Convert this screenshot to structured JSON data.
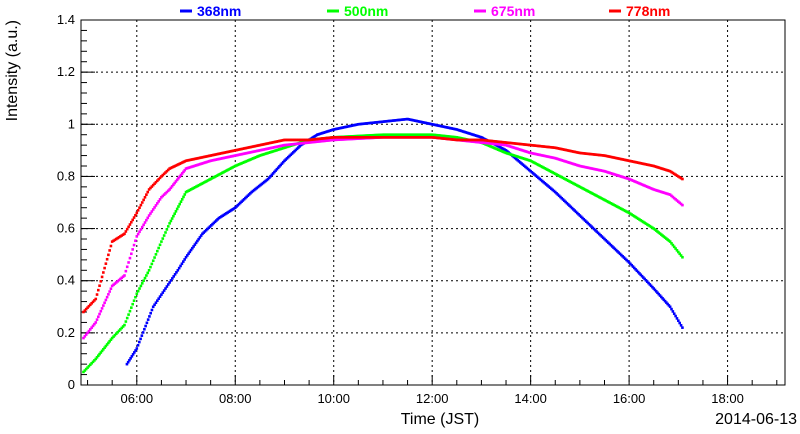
{
  "chart_data": {
    "type": "scatter",
    "title": "",
    "xlabel": "Time (JST)",
    "ylabel": "Intensity (a.u.)",
    "date_label": "2014-06-13",
    "xlim": [
      "04:52",
      "19:10"
    ],
    "ylim": [
      0,
      1.4
    ],
    "x_ticks": [
      "06:00",
      "08:00",
      "10:00",
      "12:00",
      "14:00",
      "16:00",
      "18:00"
    ],
    "y_ticks": [
      "0",
      "0.2",
      "0.4",
      "0.6",
      "0.8",
      "1",
      "1.2",
      "1.4"
    ],
    "grid": true,
    "legend_position": "top",
    "series": [
      {
        "name": "368nm",
        "color": "#0000ff",
        "points": [
          [
            "05:48",
            0.08
          ],
          [
            "06:00",
            0.14
          ],
          [
            "06:20",
            0.3
          ],
          [
            "06:35",
            0.37
          ],
          [
            "06:50",
            0.44
          ],
          [
            "07:00",
            0.49
          ],
          [
            "07:20",
            0.58
          ],
          [
            "07:40",
            0.64
          ],
          [
            "08:00",
            0.68
          ],
          [
            "08:20",
            0.74
          ],
          [
            "08:40",
            0.79
          ],
          [
            "09:00",
            0.86
          ],
          [
            "09:20",
            0.92
          ],
          [
            "09:40",
            0.96
          ],
          [
            "10:00",
            0.98
          ],
          [
            "10:30",
            1.0
          ],
          [
            "11:00",
            1.01
          ],
          [
            "11:30",
            1.02
          ],
          [
            "12:00",
            1.0
          ],
          [
            "12:30",
            0.98
          ],
          [
            "13:00",
            0.95
          ],
          [
            "13:30",
            0.9
          ],
          [
            "14:00",
            0.82
          ],
          [
            "14:30",
            0.74
          ],
          [
            "15:00",
            0.65
          ],
          [
            "15:30",
            0.56
          ],
          [
            "16:00",
            0.47
          ],
          [
            "16:30",
            0.37
          ],
          [
            "16:50",
            0.3
          ],
          [
            "17:05",
            0.22
          ]
        ]
      },
      {
        "name": "500nm",
        "color": "#00ff00",
        "points": [
          [
            "04:55",
            0.05
          ],
          [
            "05:10",
            0.1
          ],
          [
            "05:30",
            0.18
          ],
          [
            "05:45",
            0.23
          ],
          [
            "06:00",
            0.35
          ],
          [
            "06:15",
            0.44
          ],
          [
            "06:30",
            0.55
          ],
          [
            "06:40",
            0.62
          ],
          [
            "07:00",
            0.74
          ],
          [
            "07:30",
            0.79
          ],
          [
            "08:00",
            0.84
          ],
          [
            "08:30",
            0.88
          ],
          [
            "09:00",
            0.91
          ],
          [
            "09:30",
            0.94
          ],
          [
            "10:00",
            0.95
          ],
          [
            "11:00",
            0.96
          ],
          [
            "12:00",
            0.96
          ],
          [
            "12:30",
            0.95
          ],
          [
            "13:00",
            0.93
          ],
          [
            "13:30",
            0.89
          ],
          [
            "14:00",
            0.86
          ],
          [
            "14:30",
            0.81
          ],
          [
            "15:00",
            0.76
          ],
          [
            "15:30",
            0.71
          ],
          [
            "16:00",
            0.66
          ],
          [
            "16:30",
            0.6
          ],
          [
            "16:50",
            0.55
          ],
          [
            "17:05",
            0.49
          ]
        ]
      },
      {
        "name": "675nm",
        "color": "#ff00ff",
        "points": [
          [
            "04:55",
            0.18
          ],
          [
            "05:10",
            0.24
          ],
          [
            "05:30",
            0.38
          ],
          [
            "05:45",
            0.42
          ],
          [
            "06:00",
            0.57
          ],
          [
            "06:15",
            0.65
          ],
          [
            "06:30",
            0.72
          ],
          [
            "06:40",
            0.75
          ],
          [
            "07:00",
            0.83
          ],
          [
            "07:30",
            0.86
          ],
          [
            "08:00",
            0.88
          ],
          [
            "08:30",
            0.9
          ],
          [
            "09:00",
            0.92
          ],
          [
            "09:30",
            0.93
          ],
          [
            "10:00",
            0.94
          ],
          [
            "11:00",
            0.95
          ],
          [
            "12:00",
            0.95
          ],
          [
            "12:30",
            0.94
          ],
          [
            "13:00",
            0.93
          ],
          [
            "13:30",
            0.92
          ],
          [
            "14:00",
            0.89
          ],
          [
            "14:30",
            0.87
          ],
          [
            "15:00",
            0.84
          ],
          [
            "15:30",
            0.82
          ],
          [
            "16:00",
            0.79
          ],
          [
            "16:30",
            0.75
          ],
          [
            "16:50",
            0.73
          ],
          [
            "17:05",
            0.69
          ]
        ]
      },
      {
        "name": "778nm",
        "color": "#ff0000",
        "points": [
          [
            "04:55",
            0.28
          ],
          [
            "05:10",
            0.33
          ],
          [
            "05:30",
            0.55
          ],
          [
            "05:45",
            0.58
          ],
          [
            "06:00",
            0.66
          ],
          [
            "06:15",
            0.75
          ],
          [
            "06:30",
            0.8
          ],
          [
            "06:40",
            0.83
          ],
          [
            "07:00",
            0.86
          ],
          [
            "07:30",
            0.88
          ],
          [
            "08:00",
            0.9
          ],
          [
            "08:30",
            0.92
          ],
          [
            "09:00",
            0.94
          ],
          [
            "09:30",
            0.94
          ],
          [
            "10:00",
            0.95
          ],
          [
            "11:00",
            0.95
          ],
          [
            "12:00",
            0.95
          ],
          [
            "12:30",
            0.94
          ],
          [
            "13:00",
            0.94
          ],
          [
            "13:30",
            0.93
          ],
          [
            "14:00",
            0.92
          ],
          [
            "14:30",
            0.91
          ],
          [
            "15:00",
            0.89
          ],
          [
            "15:30",
            0.88
          ],
          [
            "16:00",
            0.86
          ],
          [
            "16:30",
            0.84
          ],
          [
            "16:50",
            0.82
          ],
          [
            "17:05",
            0.79
          ]
        ]
      }
    ]
  }
}
